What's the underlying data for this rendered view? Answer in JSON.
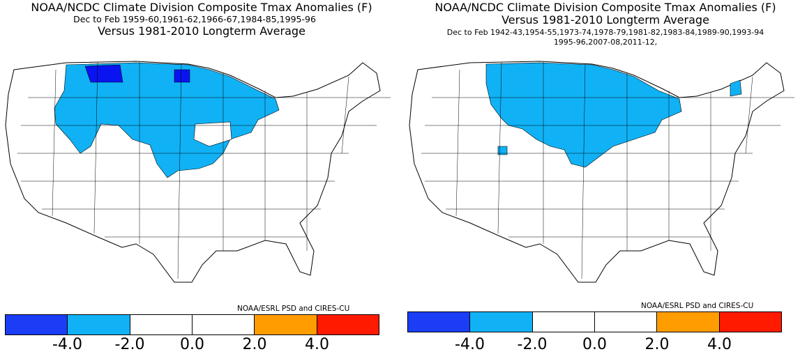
{
  "left": {
    "title": "NOAA/NCDC Climate Division Composite Tmax Anomalies (F)",
    "line2": "Dec to Feb   1959-60,1961-62,1966-67,1984-85,1995-96",
    "line3": "Versus 1981-2010 Longterm Average",
    "credit": "NOAA/ESRL PSD and CIRES-CU"
  },
  "right": {
    "title": "NOAA/NCDC Climate Division Composite Tmax Anomalies (F)",
    "line2": "Versus 1981-2010 Longterm Average",
    "line3": "Dec to Feb   1942-43,1954-55,1973-74,1978-79,1981-82,1983-84,1989-90,1993-94",
    "line4": "1995-96,2007-08,2011-12,",
    "credit": "NOAA/ESRL PSD and CIRES-CU"
  },
  "colorbar": {
    "colors": [
      "#1a3df5",
      "#10b2f5",
      "#ffffff",
      "#ffffff",
      "#ff9c00",
      "#ff1a00"
    ],
    "ticks": [
      "-4.0",
      "-2.0",
      "0.0",
      "2.0",
      "4.0"
    ]
  },
  "map_colors": {
    "dark_blue": "#0a14f0",
    "light_blue": "#10b2f5",
    "neutral": "#ffffff"
  }
}
